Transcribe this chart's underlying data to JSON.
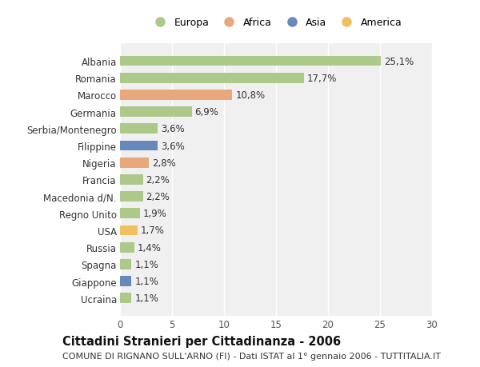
{
  "countries": [
    "Albania",
    "Romania",
    "Marocco",
    "Germania",
    "Serbia/Montenegro",
    "Filippine",
    "Nigeria",
    "Francia",
    "Macedonia d/N.",
    "Regno Unito",
    "USA",
    "Russia",
    "Spagna",
    "Giappone",
    "Ucraina"
  ],
  "values": [
    25.1,
    17.7,
    10.8,
    6.9,
    3.6,
    3.6,
    2.8,
    2.2,
    2.2,
    1.9,
    1.7,
    1.4,
    1.1,
    1.1,
    1.1
  ],
  "labels": [
    "25,1%",
    "17,7%",
    "10,8%",
    "6,9%",
    "3,6%",
    "3,6%",
    "2,8%",
    "2,2%",
    "2,2%",
    "1,9%",
    "1,7%",
    "1,4%",
    "1,1%",
    "1,1%",
    "1,1%"
  ],
  "continents": [
    "Europa",
    "Europa",
    "Africa",
    "Europa",
    "Europa",
    "Asia",
    "Africa",
    "Europa",
    "Europa",
    "Europa",
    "America",
    "Europa",
    "Europa",
    "Asia",
    "Europa"
  ],
  "colors": {
    "Europa": "#adc98a",
    "Africa": "#e8a87c",
    "Asia": "#6688bb",
    "America": "#f0c060"
  },
  "legend_order": [
    "Europa",
    "Africa",
    "Asia",
    "America"
  ],
  "title": "Cittadini Stranieri per Cittadinanza - 2006",
  "subtitle": "COMUNE DI RIGNANO SULL'ARNO (FI) - Dati ISTAT al 1° gennaio 2006 - TUTTITALIA.IT",
  "xlim": [
    0,
    30
  ],
  "xticks": [
    0,
    5,
    10,
    15,
    20,
    25,
    30
  ],
  "background_color": "#ffffff",
  "grid_color": "#e8e8e8",
  "label_fontsize": 8.5,
  "title_fontsize": 10.5,
  "subtitle_fontsize": 8
}
